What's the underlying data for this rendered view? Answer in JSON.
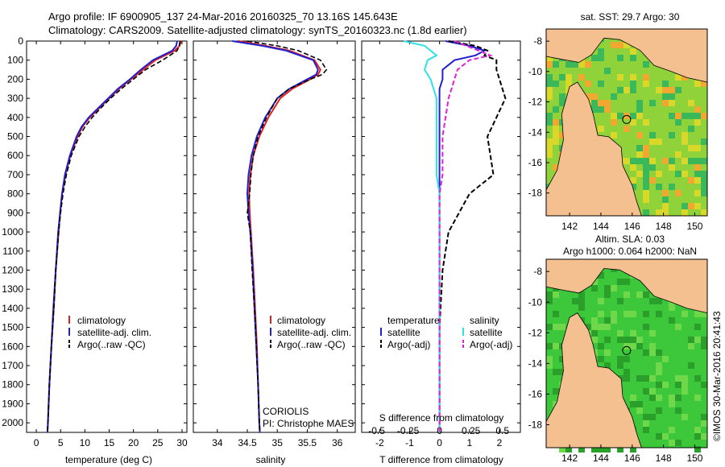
{
  "header": {
    "title_line1": "Argo profile: IF 6900905_137 24-Mar-2016 20160325_70 13.16S 145.643E",
    "title_line2": "Climatology: CARS2009. Satellite-adjusted climatology: synTS_20160323.nc (1.8d earlier)"
  },
  "colors": {
    "climatology": "#e02020",
    "satellite_adj": "#2020d0",
    "argo": "#000000",
    "satellite_s": "#30e0e8",
    "argo_s": "#e020d8",
    "land": "#f4c090",
    "sst_field": "#8fd23a",
    "sla_field": "#3cc83a"
  },
  "chart_data": [
    {
      "type": "line",
      "xlabel": "temperature (deg C)",
      "xlim": [
        -2,
        31
      ],
      "xticks": [
        "0",
        "5",
        "10",
        "15",
        "20",
        "25",
        "30"
      ],
      "yticks": [
        "0",
        "100",
        "200",
        "300",
        "400",
        "500",
        "600",
        "700",
        "800",
        "900",
        "1000",
        "1100",
        "1200",
        "1300",
        "1400",
        "1500",
        "1600",
        "1700",
        "1800",
        "1900",
        "2000"
      ],
      "ylim": [
        0,
        2050
      ],
      "depth": [
        0,
        25,
        50,
        100,
        150,
        200,
        250,
        300,
        350,
        400,
        450,
        500,
        600,
        700,
        800,
        900,
        1000,
        1200,
        1400,
        1600,
        1800,
        2000,
        2050
      ],
      "series": [
        {
          "name": "climatology",
          "values": [
            29.8,
            29.5,
            28.5,
            24.5,
            22.0,
            19.5,
            17.0,
            15.0,
            13.0,
            11.0,
            9.5,
            8.5,
            7.0,
            6.0,
            5.3,
            4.9,
            4.6,
            4.0,
            3.6,
            3.1,
            2.7,
            2.4,
            2.3
          ]
        },
        {
          "name": "satellite-adj. clim.",
          "values": [
            29.0,
            28.8,
            28.0,
            24.0,
            21.5,
            19.3,
            16.8,
            14.8,
            12.8,
            10.8,
            9.3,
            8.3,
            6.9,
            5.9,
            5.3,
            4.9,
            4.5,
            4.0,
            3.5,
            3.1,
            2.7,
            2.4,
            2.3
          ]
        },
        {
          "name": "Argo(..raw -QC)",
          "values": [
            29.6,
            29.4,
            29.0,
            26.0,
            22.5,
            20.0,
            17.5,
            15.3,
            13.3,
            11.5,
            10.0,
            8.8,
            7.2,
            6.2,
            5.5,
            5.0,
            4.6,
            4.0,
            3.6,
            3.1,
            2.7,
            2.4,
            2.3
          ]
        }
      ],
      "legend": "lower-left"
    },
    {
      "type": "line",
      "xlabel": "salinity",
      "xlim": [
        33.6,
        36.3
      ],
      "xticks": [
        "34",
        "34.5",
        "35",
        "35.5",
        "36"
      ],
      "depth": [
        0,
        25,
        50,
        100,
        150,
        175,
        200,
        250,
        300,
        400,
        500,
        600,
        700,
        800,
        900,
        1000,
        1200,
        1400,
        1600,
        1800,
        2000,
        2050
      ],
      "series": [
        {
          "name": "climatology",
          "values": [
            34.35,
            34.8,
            35.2,
            35.62,
            35.72,
            35.68,
            35.55,
            35.25,
            35.05,
            34.85,
            34.7,
            34.6,
            34.55,
            34.53,
            34.54,
            34.56,
            34.6,
            34.63,
            34.66,
            34.68,
            34.7,
            34.71
          ]
        },
        {
          "name": "satellite-adj. clim.",
          "values": [
            34.25,
            34.75,
            35.15,
            35.6,
            35.68,
            35.65,
            35.5,
            35.2,
            35.0,
            34.8,
            34.66,
            34.57,
            34.52,
            34.5,
            34.52,
            34.55,
            34.59,
            34.62,
            34.65,
            34.68,
            34.7,
            34.71
          ]
        },
        {
          "name": "Argo(..raw -QC)",
          "values": [
            34.5,
            35.0,
            35.35,
            35.72,
            35.82,
            35.75,
            35.55,
            35.2,
            35.0,
            34.82,
            34.68,
            34.6,
            34.56,
            34.54,
            34.5,
            34.55,
            34.58,
            34.62,
            34.65,
            34.68,
            34.7,
            34.71
          ]
        }
      ],
      "annotation_line1": "CORIOLIS",
      "annotation_line2": "PI: Christophe MAES"
    },
    {
      "type": "line",
      "xlabel": "T difference from climatology",
      "xlabel_top": "S difference from climatology",
      "xlim": [
        -2.6,
        2.7
      ],
      "xticks": [
        "-2",
        "-1",
        "0",
        "1",
        "2"
      ],
      "xticks_s": [
        "-0.5",
        "-0.25",
        "0",
        "0.25",
        "0.5"
      ],
      "depth": [
        0,
        25,
        50,
        75,
        100,
        150,
        200,
        250,
        300,
        400,
        500,
        600,
        700,
        800,
        1000,
        1200,
        1500,
        1800,
        2000,
        2050
      ],
      "series": [
        {
          "name": "temperature satellite",
          "values": [
            0.2,
            1.0,
            1.5,
            1.2,
            0.5,
            0.1,
            0.1,
            0.0,
            0.0,
            0.0,
            0.0,
            0.0,
            0.0,
            0.0,
            0.0,
            0.0,
            0.0,
            0.0,
            0.0,
            0.0
          ]
        },
        {
          "name": "temperature Argo(-adj)",
          "values": [
            0.3,
            1.2,
            1.6,
            1.5,
            1.9,
            1.9,
            2.0,
            2.1,
            2.2,
            1.9,
            1.6,
            1.7,
            1.8,
            1.0,
            0.3,
            0.1,
            0.0,
            0.0,
            0.0,
            0.0
          ]
        },
        {
          "name": "salinity satellite",
          "values": [
            -1.2,
            -0.5,
            -0.3,
            -0.1,
            -0.4,
            -0.5,
            -0.3,
            -0.2,
            -0.1,
            -0.1,
            -0.1,
            -0.1,
            -0.1,
            0.0,
            0.0,
            0.0,
            0.0,
            0.0,
            0.0,
            0.0
          ]
        },
        {
          "name": "salinity Argo(-adj)",
          "values": [
            0.5,
            0.9,
            1.3,
            1.7,
            1.0,
            0.6,
            0.5,
            0.4,
            0.3,
            0.2,
            0.1,
            0.1,
            0.1,
            0.0,
            0.0,
            0.0,
            0.0,
            0.0,
            0.0,
            0.0
          ]
        }
      ],
      "legend_head_t": "temperature",
      "legend_head_s": "salinity"
    }
  ],
  "maps": {
    "sst_title": "sat. SST: 29.7 Argo: 30",
    "sla_title1": "Altim. SLA: 0.03",
    "sla_title2": "Argo h1000: 0.064 h2000: NaN",
    "xticks": [
      "142",
      "144",
      "146",
      "148",
      "150"
    ],
    "yticks": [
      "-8",
      "-10",
      "-12",
      "-14",
      "-16",
      "-18"
    ],
    "float_lon": 145.643,
    "float_lat": -13.16,
    "lon_range": [
      140.5,
      150.8
    ],
    "lat_range": [
      -19.5,
      -7.2
    ]
  },
  "credit": "©IMOS 30-Mar-2016 20:41:43"
}
